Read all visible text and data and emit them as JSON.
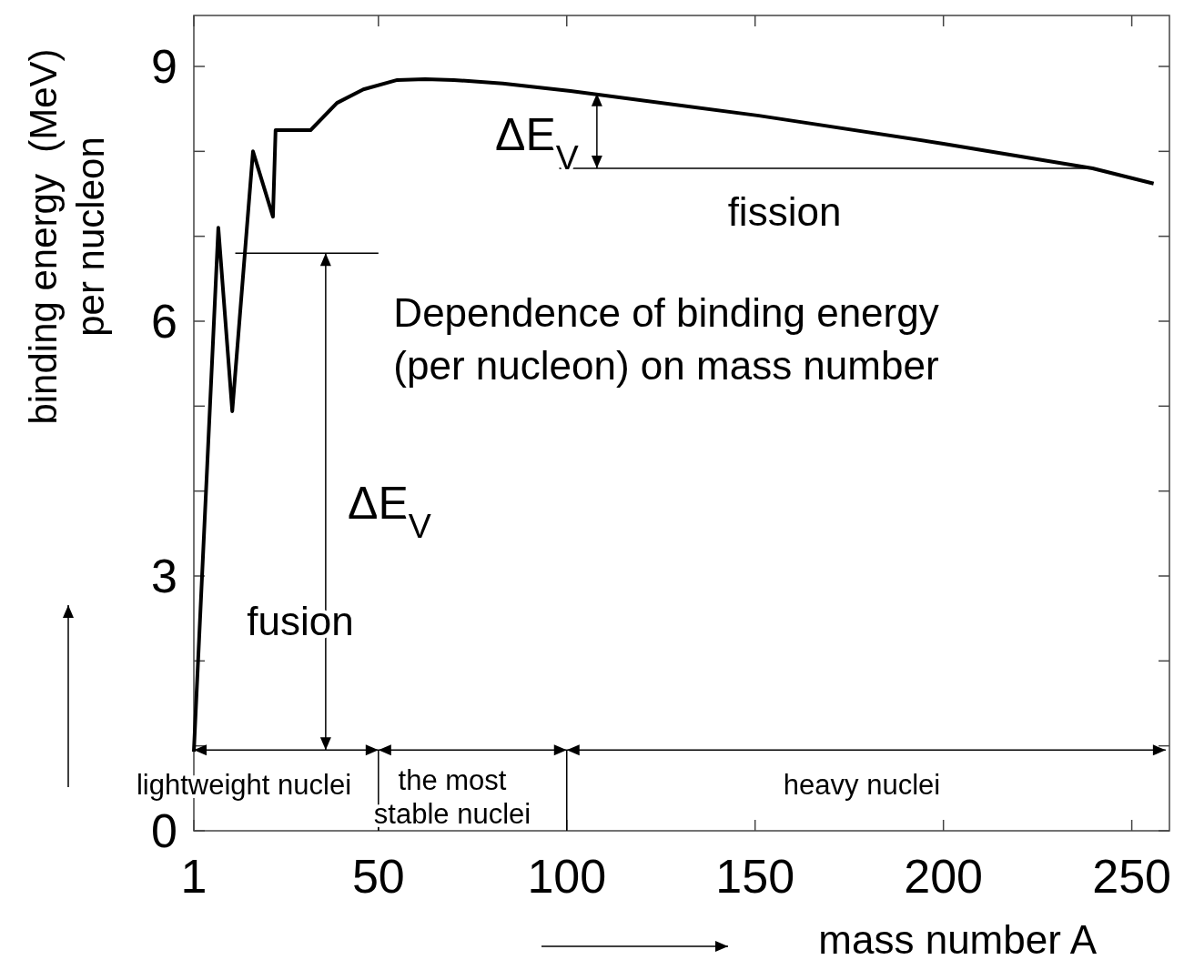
{
  "chart_data": {
    "type": "line",
    "title": "Dependence of binding energy\n(per nucleon) on mass number",
    "xlabel": "mass number A",
    "ylabel": "binding energy  (MeV)\nper nucleon",
    "x": [
      1,
      7.5,
      11.2,
      16.7,
      22,
      22.7,
      32,
      39,
      46,
      55,
      62.4,
      70,
      83,
      101,
      151,
      200,
      239.6,
      255.8
    ],
    "series": [
      {
        "color": "#000000",
        "values": [
          0.93,
          7.1,
          4.94,
          8.0,
          7.23,
          8.25,
          8.25,
          8.57,
          8.73,
          8.84,
          8.85,
          8.84,
          8.8,
          8.71,
          8.42,
          8.09,
          7.8,
          7.62
        ]
      }
    ],
    "xlim": [
      1,
      260
    ],
    "ylim": [
      0,
      9.6
    ],
    "xticks": [
      1,
      50,
      100,
      150,
      200,
      250
    ],
    "yticks": [
      0,
      {
        "value": 1,
        "label": null
      },
      {
        "value": 2,
        "label": null
      },
      3,
      {
        "value": 4,
        "label": null
      },
      {
        "value": 5,
        "label": null
      },
      6,
      {
        "value": 7,
        "label": null
      },
      {
        "value": 8,
        "label": null
      },
      9
    ],
    "grid": false,
    "marker": "none",
    "line_style": "solid",
    "annotations": [
      "ΔE$_{V}$",
      "fusion",
      "ΔE$_{V}$",
      "fission",
      "lightweight nuclei",
      "the most\nstable nuclei",
      "heavy nuclei"
    ]
  }
}
